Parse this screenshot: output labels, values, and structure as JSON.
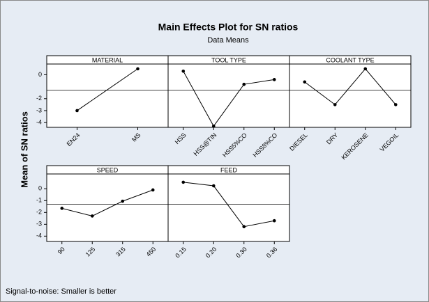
{
  "chart_data": {
    "type": "line",
    "title": "Main Effects Plot for SN ratios",
    "subtitle": "Data Means",
    "y_label": "Mean of SN ratios",
    "note": "Signal-to-noise: Smaller is better",
    "reference_line": -1.3,
    "color": "#000000",
    "rows": [
      {
        "ylim": [
          -4.4,
          0.9
        ],
        "yticks": [
          0,
          -2,
          -3,
          -4
        ],
        "panels": [
          {
            "title": "MATERIAL",
            "categories": [
              "EN24",
              "MS"
            ],
            "values": [
              -3.0,
              0.5
            ]
          },
          {
            "title": "TOOL TYPE",
            "categories": [
              "HSS",
              "HSS@TIN",
              "HSS5%CO",
              "HSS8%CO"
            ],
            "values": [
              0.3,
              -4.3,
              -0.8,
              -0.4
            ]
          },
          {
            "title": "COOLANT TYPE",
            "categories": [
              "DIESEL",
              "DRY",
              "KEROSENE",
              "VEGOIL"
            ],
            "values": [
              -0.6,
              -2.5,
              0.5,
              -2.5
            ]
          }
        ]
      },
      {
        "ylim": [
          -4.45,
          1.25
        ],
        "yticks": [
          0,
          -1,
          -2,
          -3,
          -4
        ],
        "panels": [
          {
            "title": "SPEED",
            "categories": [
              "90",
              "125",
              "315",
              "450"
            ],
            "values": [
              -1.65,
              -2.3,
              -1.05,
              -0.1
            ]
          },
          {
            "title": "FEED",
            "categories": [
              "0.15",
              "0.20",
              "0.30",
              "0.36"
            ],
            "values": [
              0.55,
              0.25,
              -3.2,
              -2.7
            ]
          }
        ]
      }
    ]
  }
}
